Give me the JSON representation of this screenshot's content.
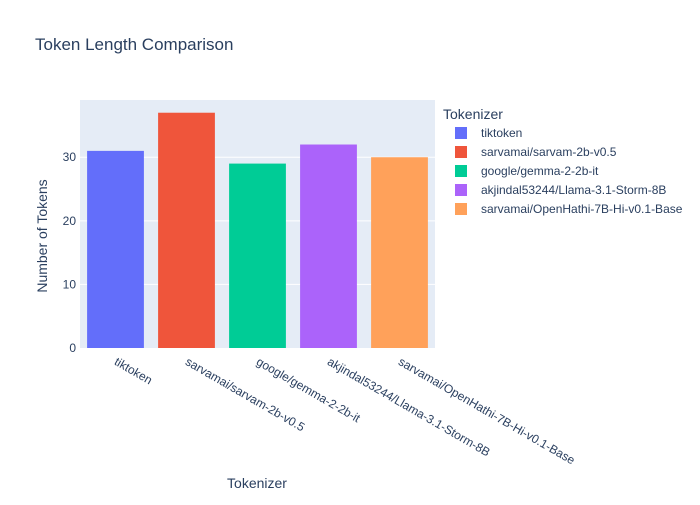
{
  "chart_data": {
    "type": "bar",
    "title": "Token Length Comparison",
    "xlabel": "Tokenizer",
    "ylabel": "Number of Tokens",
    "categories": [
      "tiktoken",
      "sarvamai/sarvam-2b-v0.5",
      "google/gemma-2-2b-it",
      "akjindal53244/Llama-3.1-Storm-8B",
      "sarvamai/OpenHathi-7B-Hi-v0.1-Base"
    ],
    "values": [
      31,
      37,
      29,
      32,
      30
    ],
    "colors": [
      "#636efa",
      "#ef553b",
      "#00cc96",
      "#ab63fa",
      "#ffa15a"
    ],
    "ylim": [
      0,
      39
    ],
    "yticks": [
      0,
      10,
      20,
      30
    ],
    "grid": true,
    "legend": {
      "title": "Tokenizer",
      "placement": "right",
      "entries": [
        "tiktoken",
        "sarvamai/sarvam-2b-v0.5",
        "google/gemma-2-2b-it",
        "akjindal53244/Llama-3.1-Storm-8B",
        "sarvamai/OpenHathi-7B-Hi-v0.1-Base"
      ]
    },
    "plot_background": "#e5ecf6",
    "grid_color": "#ffffff",
    "text_color": "#2a3f5f"
  }
}
